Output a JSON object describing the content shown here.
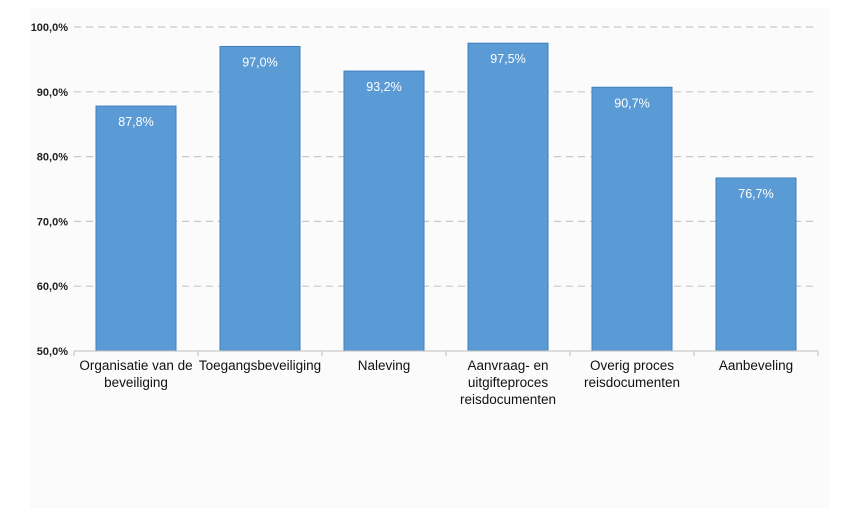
{
  "chart_data": {
    "type": "bar",
    "categories": [
      [
        "Organisatie van de",
        "beveiliging"
      ],
      [
        "Toegangsbeveiliging"
      ],
      [
        "Naleving"
      ],
      [
        "Aanvraag- en",
        "uitgifteproces",
        "reisdocumenten"
      ],
      [
        "Overig proces",
        "reisdocumenten"
      ],
      [
        "Aanbeveling"
      ]
    ],
    "values": [
      87.8,
      97.0,
      93.2,
      97.5,
      90.7,
      76.7
    ],
    "data_labels": [
      "87,8%",
      "97,0%",
      "93,2%",
      "97,5%",
      "90,7%",
      "76,7%"
    ],
    "ylim": [
      50,
      100
    ],
    "yticks": [
      50,
      60,
      70,
      80,
      90,
      100
    ],
    "ytick_labels": [
      "50,0%",
      "60,0%",
      "70,0%",
      "80,0%",
      "90,0%",
      "100,0%"
    ],
    "grid": "horizontal-dashed",
    "bar_color": "#5b9bd5",
    "bar_edge_color": "#3f7fbf"
  }
}
